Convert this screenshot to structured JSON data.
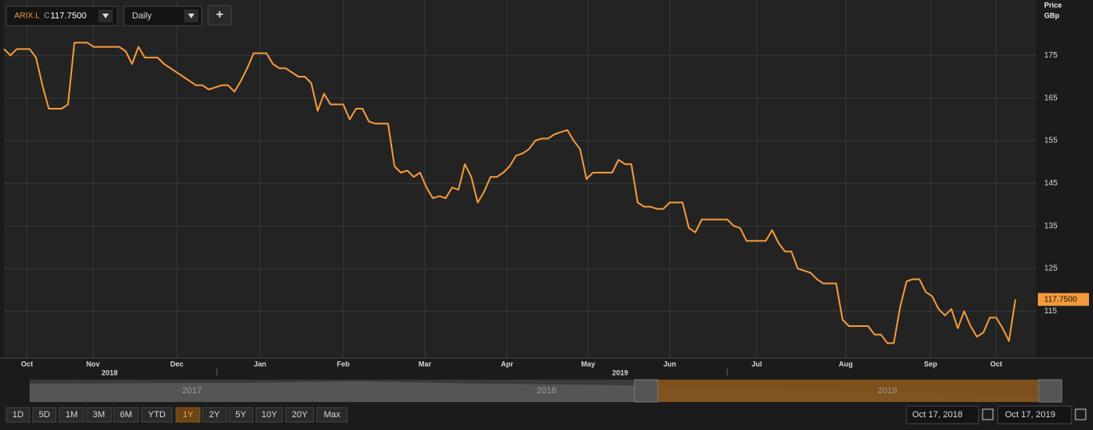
{
  "toolbar": {
    "symbol": "ARIX.L",
    "price_prefix": "C",
    "price": "117.7500",
    "interval": "Daily",
    "add": "+"
  },
  "chart_data": {
    "type": "line",
    "y_axis_title": "Price",
    "y_axis_unit": "GBp",
    "color": "#f59a3c",
    "grid": true,
    "values": [
      176.5,
      175,
      176.5,
      176.5,
      176.5,
      174.5,
      168,
      162.5,
      162.5,
      162.5,
      163.5,
      178,
      178,
      178,
      177,
      177,
      177,
      177,
      177,
      176,
      173,
      177,
      174.5,
      174.5,
      174.5,
      173,
      172,
      171,
      170,
      169,
      168,
      168,
      167,
      167.5,
      168,
      168,
      166.5,
      169,
      172,
      175.5,
      175.5,
      175.5,
      173,
      172,
      172,
      171,
      170,
      170,
      168.5,
      162,
      166,
      163.5,
      163.5,
      163.5,
      160,
      162.5,
      162.5,
      159.5,
      159,
      159,
      159,
      149,
      147.5,
      148,
      146.5,
      147.5,
      144,
      141.5,
      142,
      141.5,
      144,
      143.5,
      149.5,
      146.5,
      140.5,
      143,
      146.5,
      146.5,
      147.5,
      149,
      151.5,
      152,
      153,
      155,
      155.5,
      155.5,
      156.5,
      157,
      157.5,
      155,
      153,
      146,
      147.5,
      147.5,
      147.5,
      147.5,
      150.5,
      149.5,
      149.5,
      140.5,
      139.5,
      139.5,
      139,
      139,
      140.5,
      140.5,
      140.5,
      134.5,
      133.5,
      136.5,
      136.5,
      136.5,
      136.5,
      136.5,
      135,
      134.5,
      131.5,
      131.5,
      131.5,
      131.5,
      134,
      131,
      129,
      129,
      125,
      124.5,
      124,
      122.5,
      121.5,
      121.5,
      121.5,
      113,
      111.5,
      111.5,
      111.5,
      111.5,
      109.5,
      109.5,
      107.5,
      107.5,
      116,
      122,
      122.5,
      122.5,
      119.5,
      118.5,
      115.5,
      114,
      115.5,
      111,
      115,
      111.5,
      109,
      110,
      113.5,
      113.5,
      111,
      108,
      117.75
    ],
    "last_value_label": "117.7500",
    "xlim": [
      0,
      161.25
    ],
    "xticks": [
      {
        "value": 3.6,
        "label": "Oct"
      },
      {
        "value": 13.9,
        "label": "Nov"
      },
      {
        "value": 27,
        "label": "Dec"
      },
      {
        "value": 40,
        "label": "Jan"
      },
      {
        "value": 53,
        "label": "Feb"
      },
      {
        "value": 65.75,
        "label": "Mar"
      },
      {
        "value": 78.6,
        "label": "Apr"
      },
      {
        "value": 91.25,
        "label": "May"
      },
      {
        "value": 104,
        "label": "Jun"
      },
      {
        "value": 117.6,
        "label": "Jul"
      },
      {
        "value": 131.5,
        "label": "Aug"
      },
      {
        "value": 144.75,
        "label": "Sep"
      },
      {
        "value": 155,
        "label": "Oct"
      }
    ],
    "years": [
      "2018",
      "2019"
    ],
    "ylim": [
      104,
      188
    ],
    "yticks": [
      115,
      125,
      135,
      145,
      155,
      165,
      175
    ]
  },
  "navigator": {
    "labels": [
      "2017",
      "2018",
      "2019"
    ]
  },
  "range_buttons": [
    "1D",
    "5D",
    "1M",
    "3M",
    "6M",
    "YTD",
    "1Y",
    "2Y",
    "5Y",
    "10Y",
    "20Y",
    "Max"
  ],
  "active_range": "1Y",
  "date_range": {
    "from": "Oct 17, 2018",
    "to": "Oct 17, 2019"
  }
}
